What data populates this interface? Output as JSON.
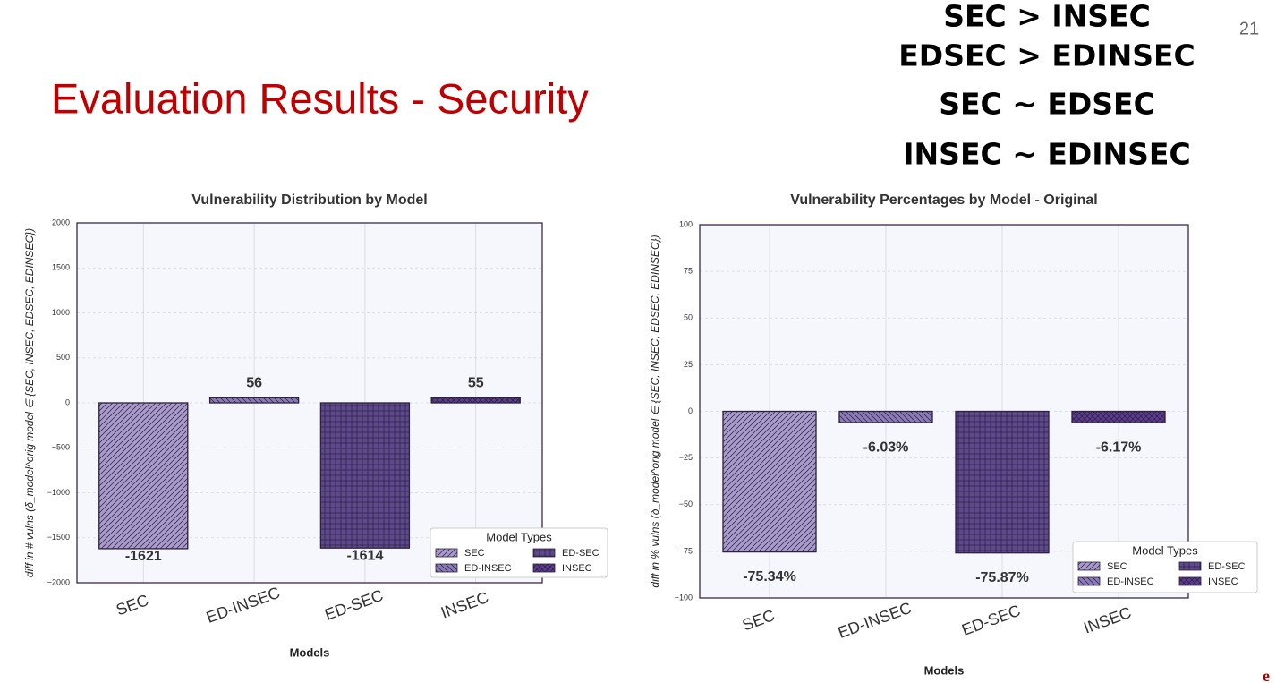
{
  "slide": {
    "title": "Evaluation Results - Security",
    "page": "21",
    "logo": "e",
    "notes": [
      "SEC > INSEC",
      "EDSEC  > EDINSEC",
      "SEC ~ EDSEC",
      "INSEC ~ EDINSEC"
    ]
  },
  "chart_data": [
    {
      "type": "bar",
      "title": "Vulnerability Distribution by Model",
      "x_label": "Models",
      "y_label": "diff in # vulns (δ_model^orig   model ∈ {SEC, INSEC, EDSEC, EDINSEC})",
      "categories": [
        "SEC",
        "ED-INSEC",
        "ED-SEC",
        "INSEC"
      ],
      "values": [
        -1621,
        56,
        -1614,
        55
      ],
      "colors": [
        "#a99bc9",
        "#8a7bb5",
        "#5e4a8a",
        "#5b3d8c"
      ],
      "hatches": [
        "/",
        "\\",
        "+",
        "x"
      ],
      "ylim": [
        -2000,
        2000
      ],
      "yticks": [
        {
          "value": -2000,
          "label": "−2000"
        },
        {
          "value": -1500,
          "label": "−1500"
        },
        {
          "value": -1000,
          "label": "−1000"
        },
        {
          "value": -500,
          "label": "−500"
        },
        0,
        500,
        1000,
        1500,
        2000
      ],
      "grid": true,
      "legend_title": "Model Types",
      "legend": "lower right"
    },
    {
      "type": "bar",
      "title": "Vulnerability Percentages by Model - Original",
      "x_label": "Models",
      "y_label": "diff in % vulns (δ_model^orig   model ∈ {SEC, INSEC, EDSEC, EDINSEC})",
      "categories": [
        "SEC",
        "ED-INSEC",
        "ED-SEC",
        "INSEC"
      ],
      "values": [
        -75.34,
        -6.03,
        -75.87,
        -6.17
      ],
      "value_labels": [
        "-75.34%",
        "-6.03%",
        "-75.87%",
        "-6.17%"
      ],
      "colors": [
        "#a99bc9",
        "#8a7bb5",
        "#5e4a8a",
        "#5b3d8c"
      ],
      "hatches": [
        "/",
        "\\",
        "+",
        "x"
      ],
      "ylim": [
        -100,
        100
      ],
      "yticks": [
        {
          "value": -100,
          "label": "−100"
        },
        {
          "value": -75,
          "label": "−75"
        },
        {
          "value": -50,
          "label": "−50"
        },
        {
          "value": -25,
          "label": "−25"
        },
        0,
        25,
        50,
        75,
        100
      ],
      "grid": true,
      "legend_title": "Model Types",
      "legend": "lower right"
    }
  ]
}
